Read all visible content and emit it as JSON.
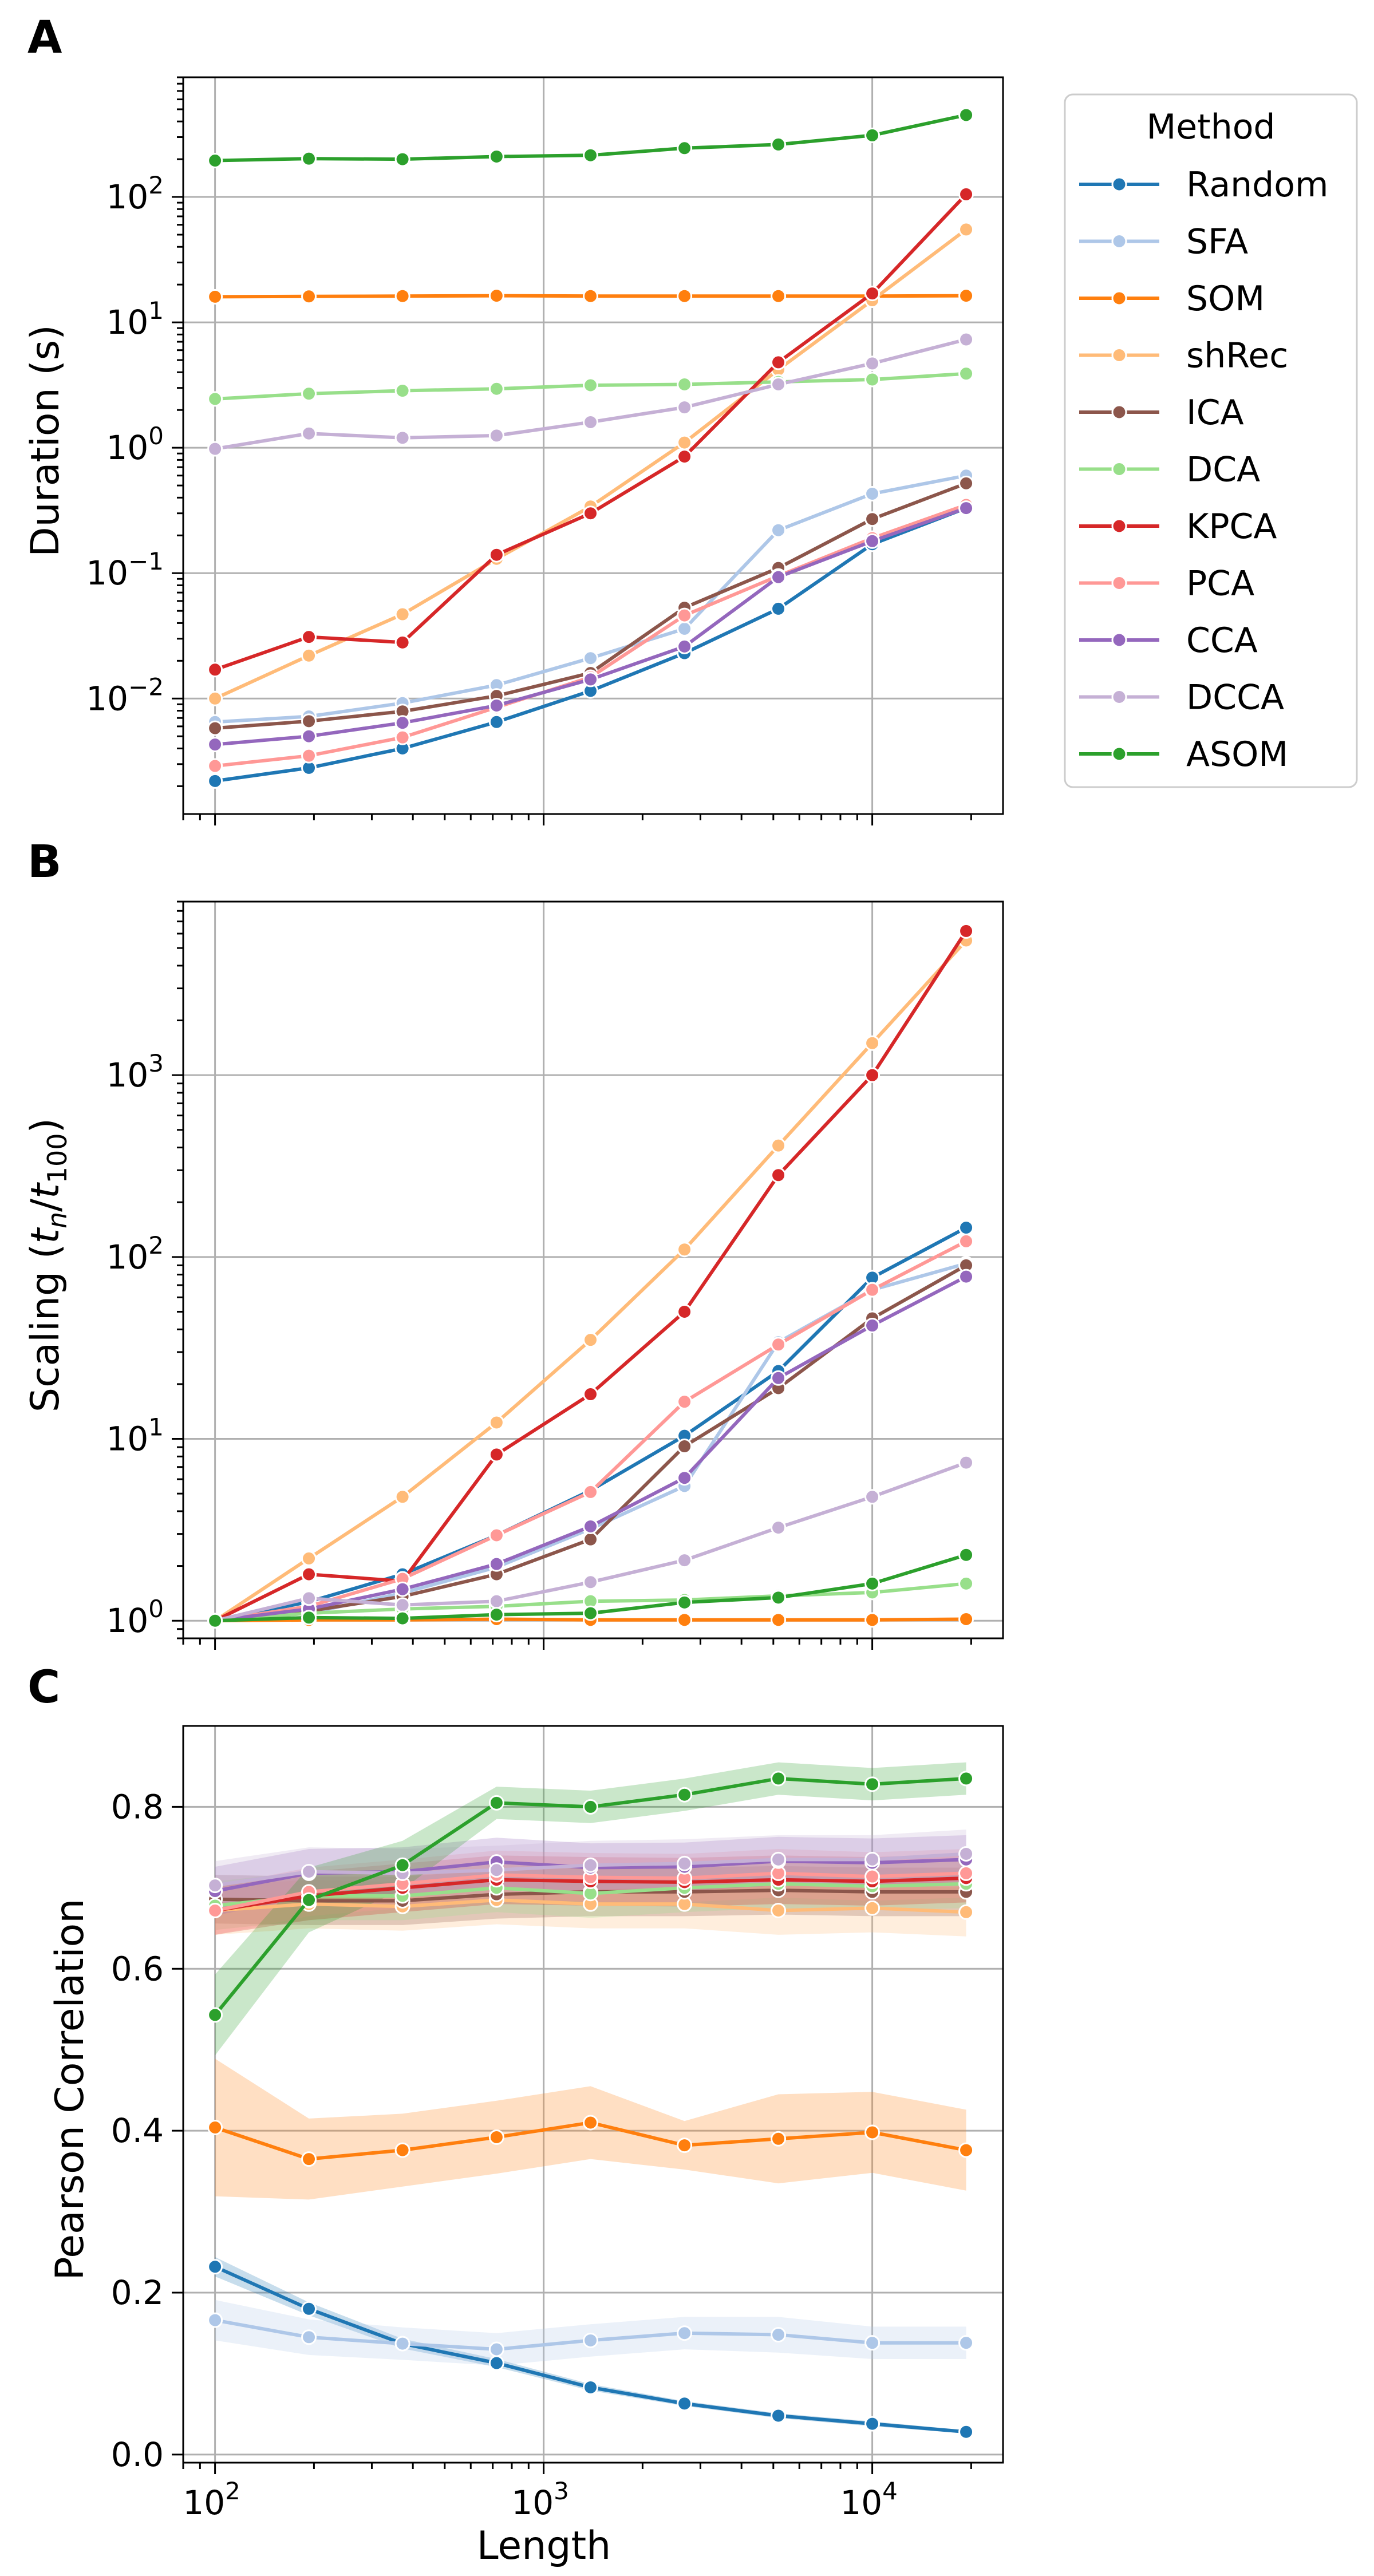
{
  "legend": {
    "title": "Method",
    "entries": [
      "Random",
      "SFA",
      "SOM",
      "shRec",
      "ICA",
      "DCA",
      "KPCA",
      "PCA",
      "CCA",
      "DCCA",
      "ASOM"
    ]
  },
  "colors": {
    "Random": "#1f77b4",
    "SFA": "#aec7e8",
    "SOM": "#ff7f0e",
    "shRec": "#ffbb78",
    "ICA": "#8c564b",
    "DCA": "#98df8a",
    "KPCA": "#d62728",
    "PCA": "#ff9896",
    "CCA": "#9467bd",
    "DCCA": "#c5b0d5",
    "ASOM": "#2ca02c"
  },
  "x_axis": {
    "label": "Length",
    "scale": "log",
    "range": [
      80,
      25000
    ],
    "ticks": [
      {
        "value": 100,
        "base": "10",
        "exp": "2"
      },
      {
        "value": 1000,
        "base": "10",
        "exp": "3"
      },
      {
        "value": 10000,
        "base": "10",
        "exp": "4"
      }
    ]
  },
  "chart_data": [
    {
      "panel": "A",
      "type": "line",
      "ylabel": "Duration (s)",
      "yscale": "log",
      "ylim": [
        0.0012,
        900
      ],
      "grid": true,
      "legend_position": "outside-right",
      "yticks": [
        {
          "value": 0.01,
          "base": "10",
          "exp": "−2"
        },
        {
          "value": 0.1,
          "base": "10",
          "exp": "−1"
        },
        {
          "value": 1,
          "base": "10",
          "exp": "0"
        },
        {
          "value": 10,
          "base": "10",
          "exp": "1"
        },
        {
          "value": 100,
          "base": "10",
          "exp": "2"
        }
      ],
      "x": [
        100,
        193,
        372,
        719,
        1389,
        2683,
        5179,
        10000,
        19307
      ],
      "series": [
        {
          "name": "Random",
          "values": [
            0.0022,
            0.0028,
            0.004,
            0.0065,
            0.0115,
            0.023,
            0.052,
            0.17,
            0.33
          ]
        },
        {
          "name": "SFA",
          "values": [
            0.0065,
            0.0072,
            0.0092,
            0.0128,
            0.021,
            0.036,
            0.22,
            0.43,
            0.6
          ]
        },
        {
          "name": "SOM",
          "values": [
            16.0,
            16.1,
            16.2,
            16.3,
            16.2,
            16.2,
            16.2,
            16.2,
            16.3
          ]
        },
        {
          "name": "shRec",
          "values": [
            0.01,
            0.022,
            0.047,
            0.13,
            0.34,
            1.1,
            4.2,
            15,
            55
          ]
        },
        {
          "name": "ICA",
          "values": [
            0.0058,
            0.0066,
            0.0079,
            0.0105,
            0.016,
            0.053,
            0.11,
            0.27,
            0.52
          ]
        },
        {
          "name": "DCA",
          "values": [
            2.45,
            2.7,
            2.85,
            2.95,
            3.15,
            3.2,
            3.35,
            3.5,
            3.9
          ]
        },
        {
          "name": "KPCA",
          "values": [
            0.017,
            0.031,
            0.028,
            0.14,
            0.3,
            0.85,
            4.8,
            17,
            105
          ]
        },
        {
          "name": "PCA",
          "values": [
            0.0029,
            0.0035,
            0.0049,
            0.0085,
            0.0148,
            0.046,
            0.095,
            0.19,
            0.35
          ]
        },
        {
          "name": "CCA",
          "values": [
            0.0043,
            0.005,
            0.0064,
            0.0088,
            0.0142,
            0.026,
            0.093,
            0.18,
            0.33
          ]
        },
        {
          "name": "DCCA",
          "values": [
            0.98,
            1.3,
            1.2,
            1.25,
            1.6,
            2.1,
            3.2,
            4.7,
            7.3
          ]
        },
        {
          "name": "ASOM",
          "values": [
            195,
            202,
            200,
            210,
            215,
            245,
            262,
            310,
            450
          ]
        }
      ]
    },
    {
      "panel": "B",
      "type": "line",
      "ylabel_parts": {
        "prefix": "Scaling (",
        "t": "t",
        "n": "n",
        "slash": "/",
        "sub100": "100",
        "suffix": ")"
      },
      "yscale": "log",
      "ylim": [
        0.8,
        9000
      ],
      "grid": true,
      "yticks": [
        {
          "value": 1,
          "base": "10",
          "exp": "0"
        },
        {
          "value": 10,
          "base": "10",
          "exp": "1"
        },
        {
          "value": 100,
          "base": "10",
          "exp": "2"
        },
        {
          "value": 1000,
          "base": "10",
          "exp": "3"
        }
      ],
      "x": [
        100,
        193,
        372,
        719,
        1389,
        2683,
        5179,
        10000,
        19307
      ],
      "series": [
        {
          "name": "Random",
          "values": [
            1,
            1.27,
            1.8,
            2.95,
            5.2,
            10.4,
            23.6,
            77,
            145
          ]
        },
        {
          "name": "SFA",
          "values": [
            1,
            1.1,
            1.42,
            1.97,
            3.2,
            5.5,
            34,
            66,
            92
          ]
        },
        {
          "name": "SOM",
          "values": [
            1,
            1.01,
            1.01,
            1.02,
            1.01,
            1.01,
            1.01,
            1.01,
            1.02
          ]
        },
        {
          "name": "shRec",
          "values": [
            1,
            2.2,
            4.8,
            12.3,
            35,
            110,
            410,
            1500,
            5500
          ]
        },
        {
          "name": "ICA",
          "values": [
            1,
            1.13,
            1.36,
            1.8,
            2.8,
            9.1,
            19,
            46,
            90
          ]
        },
        {
          "name": "DCA",
          "values": [
            1,
            1.1,
            1.16,
            1.2,
            1.28,
            1.3,
            1.37,
            1.43,
            1.6
          ]
        },
        {
          "name": "KPCA",
          "values": [
            1,
            1.8,
            1.65,
            8.2,
            17.6,
            50,
            282,
            1000,
            6200
          ]
        },
        {
          "name": "PCA",
          "values": [
            1,
            1.2,
            1.7,
            2.95,
            5.1,
            16,
            33,
            66,
            122
          ]
        },
        {
          "name": "CCA",
          "values": [
            1,
            1.16,
            1.49,
            2.05,
            3.3,
            6.1,
            21.6,
            42,
            78
          ]
        },
        {
          "name": "DCCA",
          "values": [
            1,
            1.33,
            1.22,
            1.28,
            1.63,
            2.15,
            3.25,
            4.8,
            7.4
          ]
        },
        {
          "name": "ASOM",
          "values": [
            1,
            1.04,
            1.03,
            1.08,
            1.1,
            1.26,
            1.34,
            1.6,
            2.3
          ]
        }
      ]
    },
    {
      "panel": "C",
      "type": "line",
      "ylabel": "Pearson Correlation",
      "yscale": "linear",
      "ylim": [
        -0.01,
        0.9
      ],
      "grid": true,
      "yticks": [
        {
          "value": 0.0,
          "label": "0.0"
        },
        {
          "value": 0.2,
          "label": "0.2"
        },
        {
          "value": 0.4,
          "label": "0.4"
        },
        {
          "value": 0.6,
          "label": "0.6"
        },
        {
          "value": 0.8,
          "label": "0.8"
        }
      ],
      "x": [
        100,
        193,
        372,
        719,
        1389,
        2683,
        5179,
        10000,
        19307
      ],
      "series": [
        {
          "name": "Random",
          "values": [
            0.232,
            0.18,
            0.137,
            0.113,
            0.083,
            0.063,
            0.048,
            0.038,
            0.028
          ],
          "band": [
            0.012,
            0.008,
            0.006,
            0.005,
            0.004,
            0.003,
            0.003,
            0.003,
            0.002
          ]
        },
        {
          "name": "SFA",
          "values": [
            0.166,
            0.145,
            0.137,
            0.13,
            0.141,
            0.15,
            0.148,
            0.138,
            0.138
          ],
          "band": [
            0.025,
            0.022,
            0.02,
            0.02,
            0.02,
            0.02,
            0.022,
            0.02,
            0.02
          ]
        },
        {
          "name": "SOM",
          "values": [
            0.404,
            0.365,
            0.376,
            0.392,
            0.41,
            0.382,
            0.39,
            0.398,
            0.376
          ],
          "band": [
            0.085,
            0.05,
            0.045,
            0.045,
            0.045,
            0.03,
            0.055,
            0.05,
            0.05
          ]
        },
        {
          "name": "shRec",
          "values": [
            0.672,
            0.68,
            0.677,
            0.685,
            0.68,
            0.68,
            0.672,
            0.675,
            0.67
          ],
          "band": [
            0.03,
            0.03,
            0.03,
            0.03,
            0.03,
            0.03,
            0.03,
            0.03,
            0.03
          ]
        },
        {
          "name": "ICA",
          "values": [
            0.686,
            0.684,
            0.684,
            0.692,
            0.695,
            0.695,
            0.697,
            0.695,
            0.695
          ],
          "band": [
            0.03,
            0.03,
            0.03,
            0.03,
            0.03,
            0.03,
            0.03,
            0.03,
            0.03
          ]
        },
        {
          "name": "DCA",
          "values": [
            0.678,
            0.69,
            0.69,
            0.7,
            0.693,
            0.7,
            0.705,
            0.702,
            0.705
          ],
          "band": [
            0.03,
            0.03,
            0.03,
            0.03,
            0.03,
            0.03,
            0.03,
            0.03,
            0.03
          ]
        },
        {
          "name": "KPCA",
          "values": [
            0.672,
            0.69,
            0.7,
            0.71,
            0.708,
            0.707,
            0.71,
            0.708,
            0.712
          ],
          "band": [
            0.03,
            0.03,
            0.03,
            0.03,
            0.03,
            0.03,
            0.03,
            0.03,
            0.03
          ]
        },
        {
          "name": "PCA",
          "values": [
            0.672,
            0.695,
            0.705,
            0.716,
            0.713,
            0.712,
            0.718,
            0.714,
            0.718
          ],
          "band": [
            0.03,
            0.03,
            0.03,
            0.03,
            0.03,
            0.03,
            0.03,
            0.03,
            0.03
          ]
        },
        {
          "name": "CCA",
          "values": [
            0.696,
            0.718,
            0.72,
            0.732,
            0.725,
            0.726,
            0.733,
            0.731,
            0.735
          ],
          "band": [
            0.03,
            0.03,
            0.03,
            0.03,
            0.03,
            0.03,
            0.03,
            0.03,
            0.03
          ]
        },
        {
          "name": "DCCA",
          "values": [
            0.703,
            0.72,
            0.718,
            0.722,
            0.728,
            0.73,
            0.735,
            0.735,
            0.742
          ],
          "band": [
            0.03,
            0.03,
            0.03,
            0.03,
            0.03,
            0.03,
            0.03,
            0.03,
            0.03
          ]
        },
        {
          "name": "ASOM",
          "values": [
            0.543,
            0.685,
            0.728,
            0.805,
            0.8,
            0.815,
            0.835,
            0.828,
            0.835
          ],
          "band": [
            0.05,
            0.04,
            0.03,
            0.02,
            0.02,
            0.02,
            0.02,
            0.02,
            0.02
          ]
        }
      ]
    }
  ]
}
